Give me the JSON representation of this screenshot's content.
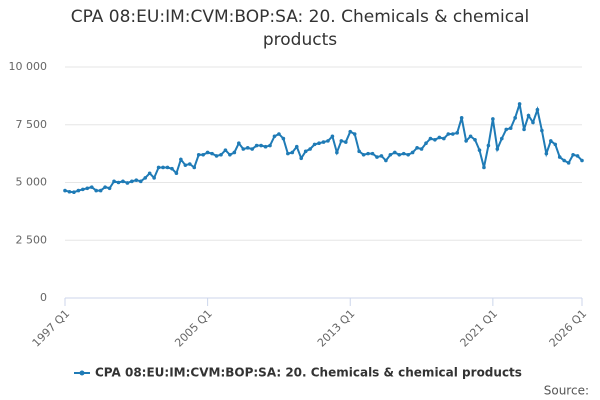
{
  "chart_data": {
    "type": "line",
    "title": "CPA 08:EU:IM:CVM:BOP:SA: 20. Chemicals & chemical products",
    "source": "Source:",
    "categories": [
      "1997 Q1",
      null,
      null,
      null,
      null,
      null,
      null,
      null,
      null,
      null,
      null,
      null,
      null,
      null,
      null,
      null,
      null,
      null,
      null,
      null,
      null,
      null,
      null,
      null,
      null,
      null,
      null,
      null,
      null,
      null,
      null,
      null,
      "2005 Q1",
      null,
      null,
      null,
      null,
      null,
      null,
      null,
      null,
      null,
      null,
      null,
      null,
      null,
      null,
      null,
      null,
      null,
      null,
      null,
      null,
      null,
      null,
      null,
      null,
      null,
      null,
      null,
      null,
      null,
      null,
      null,
      "2013 Q1",
      null,
      null,
      null,
      null,
      null,
      null,
      null,
      null,
      null,
      null,
      null,
      null,
      null,
      null,
      null,
      null,
      null,
      null,
      null,
      null,
      null,
      null,
      null,
      null,
      null,
      null,
      null,
      null,
      null,
      null,
      null,
      "2021 Q1",
      null,
      null,
      null,
      null,
      null,
      null,
      null,
      null,
      null,
      null,
      null,
      null,
      null,
      null,
      null,
      null,
      null,
      null,
      null,
      "2026 Q1"
    ],
    "series": [
      {
        "name": "CPA 08:EU:IM:CVM:BOP:SA: 20. Chemicals & chemical products",
        "color": "#1f7bb6",
        "values": [
          4650,
          4600,
          4580,
          4650,
          4700,
          4750,
          4800,
          4650,
          4650,
          4800,
          4750,
          5050,
          5000,
          5050,
          4980,
          5050,
          5100,
          5050,
          5200,
          5400,
          5200,
          5650,
          5650,
          5650,
          5600,
          5400,
          6000,
          5750,
          5800,
          5650,
          6200,
          6200,
          6300,
          6250,
          6150,
          6200,
          6400,
          6200,
          6300,
          6700,
          6450,
          6500,
          6450,
          6600,
          6600,
          6550,
          6600,
          7000,
          7100,
          6900,
          6250,
          6300,
          6550,
          6050,
          6350,
          6450,
          6650,
          6700,
          6750,
          6800,
          7000,
          6300,
          6800,
          6750,
          7200,
          7100,
          6350,
          6200,
          6250,
          6250,
          6100,
          6150,
          5950,
          6200,
          6300,
          6200,
          6250,
          6200,
          6300,
          6500,
          6450,
          6700,
          6900,
          6850,
          6950,
          6900,
          7100,
          7100,
          7150,
          7800,
          6800,
          7000,
          6850,
          6400,
          5650,
          6600,
          7750,
          6450,
          6900,
          7300,
          7350,
          7800,
          8400,
          7300,
          7900,
          7600,
          8150,
          7250,
          6250,
          6800,
          6650,
          6100,
          5950,
          5850,
          6200,
          6150,
          5950
        ]
      }
    ],
    "ylim": [
      0,
      10000
    ],
    "yticks": [
      0,
      {
        "value": 2500,
        "label": "2 500"
      },
      {
        "value": 5000,
        "label": "5 000"
      },
      {
        "value": 7500,
        "label": "7 500"
      },
      {
        "value": 10000,
        "label": "10 000"
      }
    ],
    "grid": true
  }
}
